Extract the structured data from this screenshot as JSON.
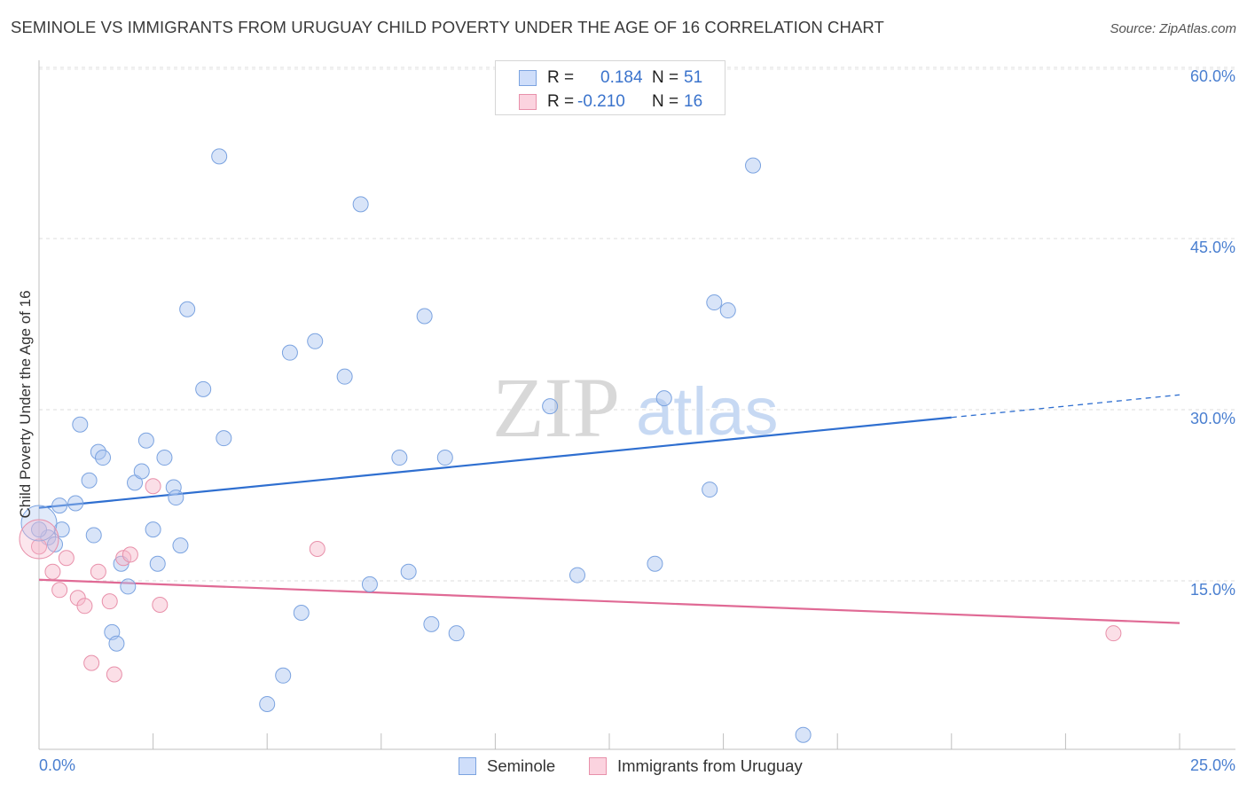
{
  "header": {
    "title": "SEMINOLE VS IMMIGRANTS FROM URUGUAY CHILD POVERTY UNDER THE AGE OF 16 CORRELATION CHART",
    "source": "Source: ZipAtlas.com"
  },
  "watermark": {
    "zip": "ZIP",
    "atlas": "atlas"
  },
  "stats_legend": {
    "rows": [
      {
        "r_label": "R =",
        "r_value": "0.184",
        "n_label": "N =",
        "n_value": "51",
        "color": "#a9c4f0"
      },
      {
        "r_label": "R =",
        "r_value": "-0.210",
        "n_label": "N =",
        "n_value": "16",
        "color": "#f6b8ca"
      }
    ]
  },
  "bottom_legend": {
    "items": [
      {
        "label": "Seminole",
        "color": "#a9c4f0"
      },
      {
        "label": "Immigrants from Uruguay",
        "color": "#f6b8ca"
      }
    ]
  },
  "chart_data": {
    "type": "scatter",
    "title": "SEMINOLE VS IMMIGRANTS FROM URUGUAY CHILD POVERTY UNDER THE AGE OF 16 CORRELATION CHART",
    "xlabel": "",
    "ylabel": "Child Poverty Under the Age of 16",
    "xlim": [
      0,
      25
    ],
    "ylim": [
      0,
      60
    ],
    "x_tick_labels": [
      "0.0%",
      "25.0%"
    ],
    "y_ticks": [
      15,
      30,
      45,
      60
    ],
    "y_tick_labels": [
      "15.0%",
      "30.0%",
      "45.0%",
      "60.0%"
    ],
    "grid": true,
    "series": [
      {
        "name": "Seminole",
        "color": "#a9c4f0",
        "stroke": "#7ba3e0",
        "points": [
          [
            0.2,
            18.8
          ],
          [
            0.35,
            18.2
          ],
          [
            0.5,
            19.5
          ],
          [
            0.45,
            21.6
          ],
          [
            0.8,
            21.8
          ],
          [
            0.9,
            28.7
          ],
          [
            1.1,
            23.8
          ],
          [
            1.2,
            19.0
          ],
          [
            1.3,
            26.3
          ],
          [
            1.4,
            25.8
          ],
          [
            1.6,
            10.5
          ],
          [
            1.7,
            9.5
          ],
          [
            1.8,
            16.5
          ],
          [
            1.95,
            14.5
          ],
          [
            2.1,
            23.6
          ],
          [
            2.25,
            24.6
          ],
          [
            2.35,
            27.3
          ],
          [
            2.5,
            19.5
          ],
          [
            2.6,
            16.5
          ],
          [
            2.75,
            25.8
          ],
          [
            2.95,
            23.2
          ],
          [
            3.0,
            22.3
          ],
          [
            3.1,
            18.1
          ],
          [
            3.25,
            38.8
          ],
          [
            3.6,
            31.8
          ],
          [
            3.95,
            52.2
          ],
          [
            4.05,
            27.5
          ],
          [
            5.35,
            6.7
          ],
          [
            5.5,
            35.0
          ],
          [
            5.75,
            12.2
          ],
          [
            6.05,
            36.0
          ],
          [
            6.7,
            32.9
          ],
          [
            7.05,
            48.0
          ],
          [
            7.25,
            14.7
          ],
          [
            7.9,
            25.8
          ],
          [
            8.1,
            15.8
          ],
          [
            8.45,
            38.2
          ],
          [
            8.6,
            11.2
          ],
          [
            8.9,
            25.8
          ],
          [
            9.15,
            10.4
          ],
          [
            11.2,
            30.3
          ],
          [
            11.8,
            15.5
          ],
          [
            13.5,
            16.5
          ],
          [
            13.7,
            31.0
          ],
          [
            14.7,
            23.0
          ],
          [
            14.8,
            39.4
          ],
          [
            15.1,
            38.7
          ],
          [
            15.65,
            51.4
          ],
          [
            16.75,
            1.5
          ],
          [
            0.0,
            19.5
          ],
          [
            5.0,
            4.2
          ]
        ]
      },
      {
        "name": "Immigrants from Uruguay",
        "color": "#f6b8ca",
        "stroke": "#e890aa",
        "points": [
          [
            0.0,
            18.0
          ],
          [
            0.3,
            15.8
          ],
          [
            0.45,
            14.2
          ],
          [
            0.6,
            17.0
          ],
          [
            0.85,
            13.5
          ],
          [
            1.0,
            12.8
          ],
          [
            1.15,
            7.8
          ],
          [
            1.3,
            15.8
          ],
          [
            1.55,
            13.2
          ],
          [
            1.65,
            6.8
          ],
          [
            1.85,
            17.0
          ],
          [
            2.0,
            17.3
          ],
          [
            2.5,
            23.3
          ],
          [
            2.65,
            12.9
          ],
          [
            6.1,
            17.8
          ],
          [
            23.55,
            10.4
          ]
        ]
      }
    ],
    "trend_lines": [
      {
        "series": "Seminole",
        "solid_x": [
          0,
          20
        ],
        "dashed_x": [
          20,
          25
        ],
        "y_at_0": 21.4,
        "slope": 0.396,
        "color": "#2f6fd0"
      },
      {
        "series": "Immigrants from Uruguay",
        "solid_x": [
          0,
          25
        ],
        "y_at_0": 15.1,
        "slope": -0.152,
        "color": "#e06a95"
      }
    ]
  }
}
